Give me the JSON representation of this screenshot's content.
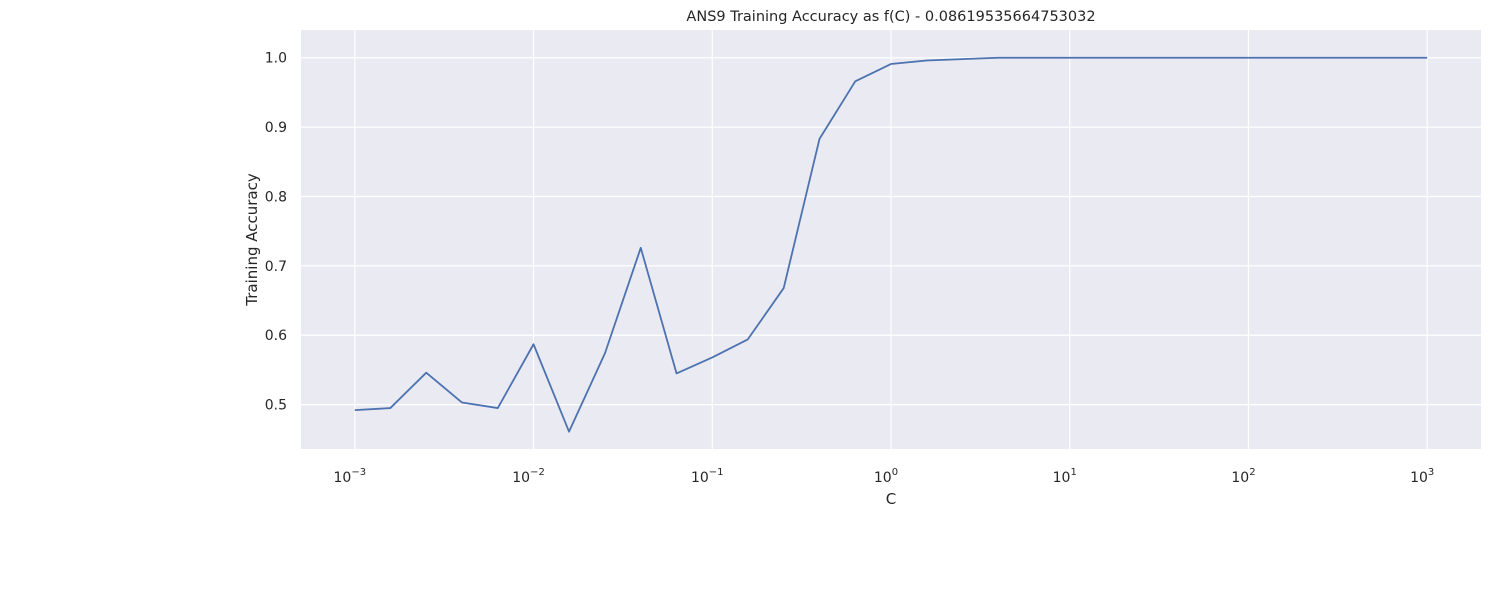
{
  "chart_data": {
    "type": "line",
    "title": "ANS9 Training Accuracy as f(C) - 0.08619535664753032",
    "xlabel": "C",
    "ylabel": "Training Accuracy",
    "xscale": "log",
    "xlim": [
      0.0005,
      2000
    ],
    "ylim": [
      0.436,
      1.04
    ],
    "grid": true,
    "x_ticks": [
      {
        "value": 0.001,
        "base": "10",
        "exp": "−3"
      },
      {
        "value": 0.01,
        "base": "10",
        "exp": "−2"
      },
      {
        "value": 0.1,
        "base": "10",
        "exp": "−1"
      },
      {
        "value": 1,
        "base": "10",
        "exp": "0"
      },
      {
        "value": 10,
        "base": "10",
        "exp": "1"
      },
      {
        "value": 100,
        "base": "10",
        "exp": "2"
      },
      {
        "value": 1000,
        "base": "10",
        "exp": "3"
      }
    ],
    "y_ticks": [
      {
        "value": 0.5,
        "label": "0.5"
      },
      {
        "value": 0.6,
        "label": "0.6"
      },
      {
        "value": 0.7,
        "label": "0.7"
      },
      {
        "value": 0.8,
        "label": "0.8"
      },
      {
        "value": 0.9,
        "label": "0.9"
      },
      {
        "value": 1.0,
        "label": "1.0"
      }
    ],
    "series": [
      {
        "color": "#4c72b0",
        "x": [
          0.001,
          0.00158,
          0.00251,
          0.00398,
          0.00631,
          0.01,
          0.0158,
          0.0251,
          0.0398,
          0.0631,
          0.1,
          0.158,
          0.251,
          0.398,
          0.631,
          1.0,
          1.58,
          2.51,
          3.98,
          6.31,
          10,
          15.8,
          25.1,
          39.8,
          63.1,
          100,
          158,
          251,
          398,
          631,
          1000
        ],
        "y": [
          0.492,
          0.495,
          0.546,
          0.503,
          0.495,
          0.587,
          0.461,
          0.574,
          0.726,
          0.545,
          0.568,
          0.594,
          0.668,
          0.883,
          0.966,
          0.991,
          0.996,
          0.998,
          1.0,
          1.0,
          1.0,
          1.0,
          1.0,
          1.0,
          1.0,
          1.0,
          1.0,
          1.0,
          1.0,
          1.0,
          1.0
        ]
      }
    ]
  }
}
